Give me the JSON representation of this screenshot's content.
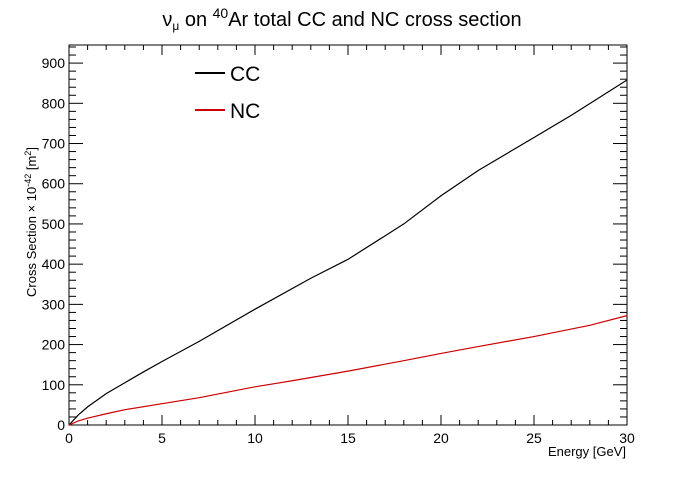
{
  "chart_data": {
    "type": "line",
    "title_parts": {
      "nu": "ν",
      "mu": "μ",
      "on": " on ",
      "mass": "40",
      "rest": "Ar total CC and NC cross section"
    },
    "xlabel": "Energy [GeV]",
    "ylabel_parts": {
      "main": "Cross Section × 10",
      "exp": "-42",
      "unit_open": " [m",
      "unit_exp": "2",
      "unit_close": "]"
    },
    "xlim": [
      0,
      30
    ],
    "ylim": [
      0,
      945
    ],
    "x_ticks": [
      0,
      5,
      10,
      15,
      20,
      25,
      30
    ],
    "y_ticks": [
      0,
      100,
      200,
      300,
      400,
      500,
      600,
      700,
      800,
      900
    ],
    "grid": false,
    "legend_position": "top-left",
    "series": [
      {
        "name": "CC",
        "color": "#000000",
        "x": [
          0,
          0.5,
          1,
          2,
          3,
          4,
          5,
          7,
          10,
          13,
          15,
          18,
          20,
          22,
          25,
          27,
          30
        ],
        "y": [
          0,
          25,
          45,
          78,
          105,
          132,
          158,
          208,
          288,
          365,
          412,
          500,
          570,
          633,
          715,
          770,
          858
        ]
      },
      {
        "name": "NC",
        "color": "#cc0000",
        "x": [
          0,
          0.5,
          1,
          2,
          3,
          5,
          7,
          10,
          12,
          15,
          18,
          20,
          22,
          25,
          28,
          30
        ],
        "y": [
          0,
          10,
          17,
          28,
          38,
          53,
          68,
          95,
          110,
          134,
          160,
          178,
          195,
          220,
          248,
          272
        ]
      }
    ]
  }
}
